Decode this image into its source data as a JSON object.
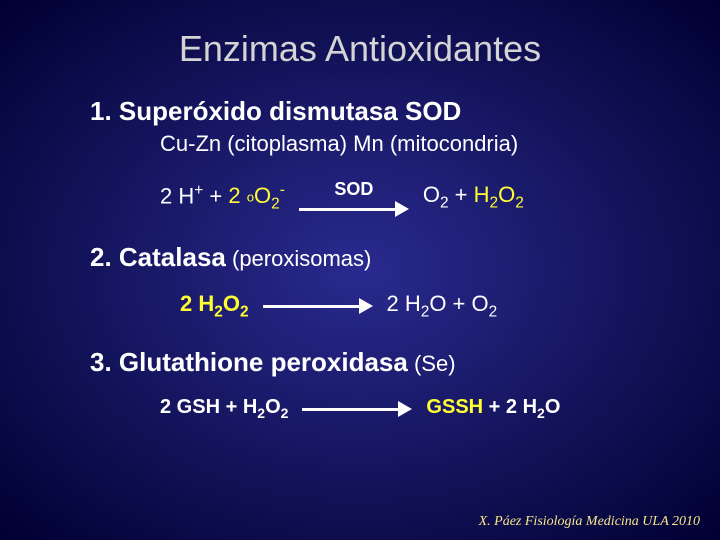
{
  "title": "Enzimas Antioxidantes",
  "sections": [
    {
      "heading": "1. Superóxido dismutasa SOD",
      "sub": "Cu-Zn (citoplasma) Mn (mitocondria)",
      "reaction": {
        "reactant_prefix": "2 H",
        "reactant_middle": " + ",
        "reactant_yellow": "2 ",
        "reactant_yellow_species": "O",
        "enzyme": "SOD",
        "product_prefix": "O",
        "product_plus": " + ",
        "product_h2o2": "H",
        "product_h2o2_rest": "O"
      }
    },
    {
      "heading": "2. Catalasa",
      "inline_sub": " (peroxisomas)",
      "reaction": {
        "reactant": "2 H",
        "reactant_o": "O",
        "product": "2 H",
        "product_o": "O + O"
      }
    },
    {
      "heading": "3. Glutathione peroxidasa",
      "inline_sub": " (Se)",
      "reaction": {
        "reactant": "2 GSH + H",
        "reactant_o": "O",
        "product_yellow": "GSSH",
        "product_rest": " + 2 H",
        "product_o": "O"
      }
    }
  ],
  "footer": "X. Páez Fisiología Medicina ULA 2010",
  "colors": {
    "title": "#d4d4d4",
    "text": "#ffffff",
    "accent": "#ffff33",
    "footer": "#f7e68c"
  }
}
